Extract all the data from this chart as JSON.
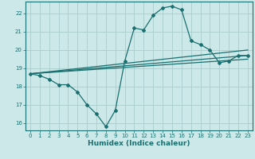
{
  "xlabel": "Humidex (Indice chaleur)",
  "bg_color": "#cce8e8",
  "grid_color": "#aacccc",
  "line_color": "#1a7070",
  "xlim": [
    -0.5,
    23.5
  ],
  "ylim": [
    15.6,
    22.65
  ],
  "xticks": [
    0,
    1,
    2,
    3,
    4,
    5,
    6,
    7,
    8,
    9,
    10,
    11,
    12,
    13,
    14,
    15,
    16,
    17,
    18,
    19,
    20,
    21,
    22,
    23
  ],
  "yticks": [
    16,
    17,
    18,
    19,
    20,
    21,
    22
  ],
  "line1_x": [
    0,
    1,
    2,
    3,
    4,
    5,
    6,
    7,
    8,
    9,
    10,
    11,
    12,
    13,
    14,
    15,
    16,
    17,
    18,
    19,
    20,
    21,
    22,
    23
  ],
  "line1_y": [
    18.7,
    18.6,
    18.4,
    18.1,
    18.1,
    17.7,
    17.0,
    16.5,
    15.8,
    16.7,
    19.4,
    21.2,
    21.1,
    21.9,
    22.3,
    22.4,
    22.2,
    20.5,
    20.3,
    20.0,
    19.3,
    19.4,
    19.7,
    19.7
  ],
  "line2_x": [
    0,
    23
  ],
  "line2_y": [
    18.7,
    20.0
  ],
  "line3_x": [
    0,
    23
  ],
  "line3_y": [
    18.7,
    19.5
  ],
  "line4_x": [
    0,
    23
  ],
  "line4_y": [
    18.7,
    19.7
  ]
}
